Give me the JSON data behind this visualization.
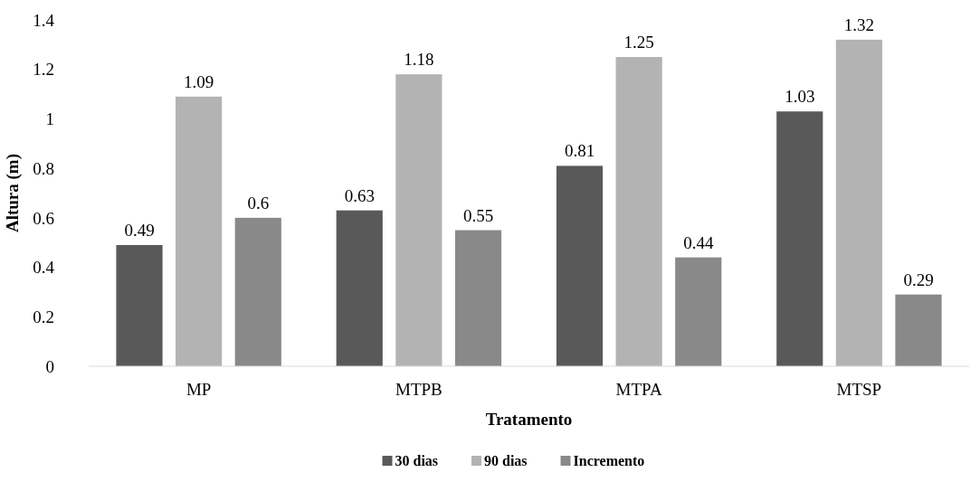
{
  "chart_data": {
    "type": "bar",
    "xlabel": "Tratamento",
    "ylabel": "Altura (m)",
    "categories": [
      "MP",
      "MTPB",
      "MTPA",
      "MTSP"
    ],
    "series": [
      {
        "name": "30 dias",
        "color": "#595959",
        "values": [
          0.49,
          0.63,
          0.81,
          1.03
        ]
      },
      {
        "name": "90 dias",
        "color": "#b3b3b3",
        "values": [
          1.09,
          1.18,
          1.25,
          1.32
        ]
      },
      {
        "name": "Incremento",
        "color": "#898989",
        "values": [
          0.6,
          0.55,
          0.44,
          0.29
        ]
      }
    ],
    "ylim": [
      0,
      1.4
    ],
    "yticks": [
      0,
      0.2,
      0.4,
      0.6,
      0.8,
      1,
      1.2,
      1.4
    ],
    "data_labels": true,
    "legend": "bottom",
    "grid": false
  }
}
